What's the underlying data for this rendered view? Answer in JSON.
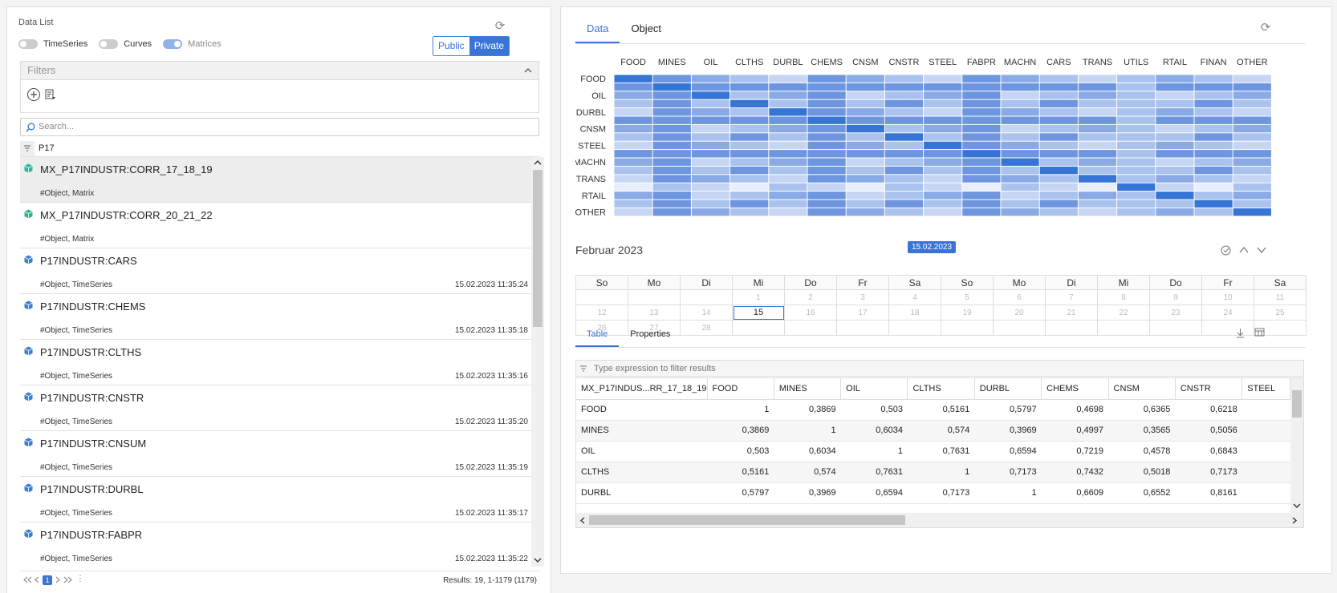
{
  "left": {
    "title": "Data List",
    "toggles": [
      {
        "label": "TimeSeries",
        "on": false
      },
      {
        "label": "Curves",
        "on": false
      },
      {
        "label": "Matrices",
        "on": true
      }
    ],
    "segment": {
      "public": "Public",
      "private": "Private",
      "active": "Private"
    },
    "filters_label": "Filters",
    "search_placeholder": "Search...",
    "filter_tag": "P17",
    "items": [
      {
        "name": "MX_P17INDUSTR:CORR_17_18_19",
        "tags": "#Object, Matrix",
        "time": "",
        "icon_color": "#2fb597",
        "selected": true
      },
      {
        "name": "MX_P17INDUSTR:CORR_20_21_22",
        "tags": "#Object, Matrix",
        "time": "",
        "icon_color": "#2fb597",
        "selected": false
      },
      {
        "name": "P17INDUSTR:CARS",
        "tags": "#Object, TimeSeries",
        "time": "15.02.2023 11:35:24",
        "icon_color": "#3a7fd6",
        "selected": false
      },
      {
        "name": "P17INDUSTR:CHEMS",
        "tags": "#Object, TimeSeries",
        "time": "15.02.2023 11:35:18",
        "icon_color": "#3a7fd6",
        "selected": false
      },
      {
        "name": "P17INDUSTR:CLTHS",
        "tags": "#Object, TimeSeries",
        "time": "15.02.2023 11:35:16",
        "icon_color": "#3a7fd6",
        "selected": false
      },
      {
        "name": "P17INDUSTR:CNSTR",
        "tags": "#Object, TimeSeries",
        "time": "15.02.2023 11:35:20",
        "icon_color": "#3a7fd6",
        "selected": false
      },
      {
        "name": "P17INDUSTR:CNSUM",
        "tags": "#Object, TimeSeries",
        "time": "15.02.2023 11:35:19",
        "icon_color": "#3a7fd6",
        "selected": false
      },
      {
        "name": "P17INDUSTR:DURBL",
        "tags": "#Object, TimeSeries",
        "time": "15.02.2023 11:35:17",
        "icon_color": "#3a7fd6",
        "selected": false
      },
      {
        "name": "P17INDUSTR:FABPR",
        "tags": "#Object, TimeSeries",
        "time": "15.02.2023 11:35:22",
        "icon_color": "#3a7fd6",
        "selected": false
      }
    ],
    "pager": {
      "current_page": "1",
      "results": "Results: 19, 1-1179 (1179)"
    }
  },
  "right": {
    "tabs": [
      "Data",
      "Object"
    ],
    "active_tab": "Data",
    "heatmap": {
      "col_labels": [
        "FOOD",
        "MINES",
        "OIL",
        "CLTHS",
        "DURBL",
        "CHEMS",
        "CNSM",
        "CNSTR",
        "STEEL",
        "FABPR",
        "MACHN",
        "CARS",
        "TRANS",
        "UTILS",
        "RTAIL",
        "FINAN",
        "OTHER"
      ],
      "row_labels": [
        "FOOD",
        "",
        "OIL",
        "",
        "DURBL",
        "",
        "CNSM",
        "",
        "STEEL",
        "",
        "MACHN",
        "",
        "TRANS",
        "",
        "RTAIL",
        "",
        "OTHER"
      ]
    },
    "calendar": {
      "month": "Februar 2023",
      "badge": "15.02.2023",
      "weekdays": [
        "So",
        "Mo",
        "Di",
        "Mi",
        "Do",
        "Fr",
        "Sa",
        "So",
        "Mo",
        "Di",
        "Mi",
        "Do",
        "Fr",
        "Sa"
      ],
      "weeks": [
        [
          "",
          "",
          "",
          "1",
          "2",
          "3",
          "4",
          "5",
          "6",
          "7",
          "8",
          "9",
          "10",
          "11"
        ],
        [
          "12",
          "13",
          "14",
          "15",
          "16",
          "17",
          "18",
          "19",
          "20",
          "21",
          "22",
          "23",
          "24",
          "25"
        ],
        [
          "26",
          "27",
          "28",
          "",
          "",
          "",
          "",
          "",
          "",
          "",
          "",
          "",
          "",
          ""
        ]
      ],
      "selected_day": "15"
    },
    "sub_tabs": [
      "Table",
      "Properties"
    ],
    "active_sub_tab": "Table",
    "table_filter_placeholder": "Type expression to filter results",
    "table": {
      "headers": [
        "MX_P17INDUS...RR_17_18_19",
        "FOOD",
        "MINES",
        "OIL",
        "CLTHS",
        "DURBL",
        "CHEMS",
        "CNSM",
        "CNSTR",
        "STEEL"
      ],
      "rows": [
        [
          "FOOD",
          "1",
          "0,3869",
          "0,503",
          "0,5161",
          "0,5797",
          "0,4698",
          "0,6365",
          "0,6218",
          ""
        ],
        [
          "MINES",
          "0,3869",
          "1",
          "0,6034",
          "0,574",
          "0,3969",
          "0,4997",
          "0,3565",
          "0,5056",
          ""
        ],
        [
          "OIL",
          "0,503",
          "0,6034",
          "1",
          "0,7631",
          "0,6594",
          "0,7219",
          "0,4578",
          "0,6843",
          ""
        ],
        [
          "CLTHS",
          "0,5161",
          "0,574",
          "0,7631",
          "1",
          "0,7173",
          "0,7432",
          "0,5018",
          "0,7173",
          ""
        ],
        [
          "DURBL",
          "0,5797",
          "0,3969",
          "0,6594",
          "0,7173",
          "1",
          "0,6609",
          "0,6552",
          "0,8161",
          ""
        ]
      ]
    }
  },
  "colors": {
    "accent": "#3a74d6",
    "matrix_icon": "#2fb597",
    "series_icon": "#3a7fd6"
  },
  "icons": [
    "refresh-icon",
    "add-filter-icon",
    "filter-list-icon",
    "search-icon",
    "funnel-icon",
    "chevron-up-icon",
    "chevron-down-icon",
    "cube-icon",
    "first-page-icon",
    "prev-page-icon",
    "next-page-icon",
    "last-page-icon",
    "more-icon",
    "check-circle-icon",
    "download-icon",
    "column-chooser-icon"
  ]
}
